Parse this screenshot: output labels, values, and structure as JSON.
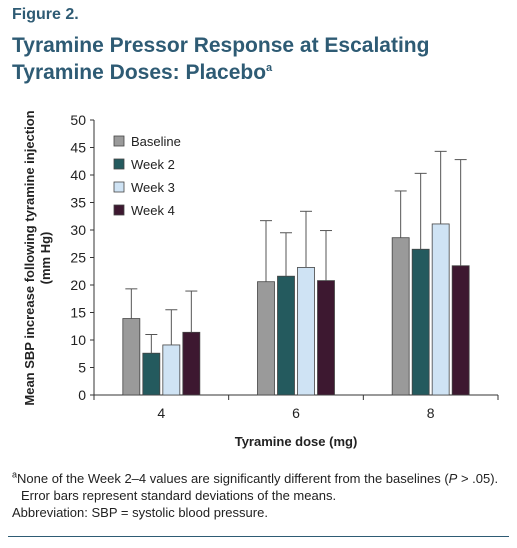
{
  "figure": {
    "label": "Figure 2.",
    "title_line1": "Tyramine Pressor Response at Escalating",
    "title_line2": "Tyramine Doses: Placebo",
    "title_sup": "a"
  },
  "chart_data": {
    "type": "bar",
    "categories": [
      "4",
      "6",
      "8"
    ],
    "series": [
      {
        "name": "Baseline",
        "color": "#9a9a9a",
        "values": [
          13.9,
          20.6,
          28.6
        ],
        "errors": [
          5.4,
          11.1,
          8.5
        ]
      },
      {
        "name": "Week 2",
        "color": "#245a5e",
        "values": [
          7.6,
          21.6,
          26.5
        ],
        "errors": [
          3.4,
          7.9,
          13.8
        ]
      },
      {
        "name": "Week 3",
        "color": "#cfe3f4",
        "values": [
          9.1,
          23.2,
          31.1
        ],
        "errors": [
          6.4,
          10.2,
          13.2
        ]
      },
      {
        "name": "Week 4",
        "color": "#3d1830",
        "values": [
          11.4,
          20.8,
          23.5
        ],
        "errors": [
          7.5,
          9.1,
          19.3
        ]
      }
    ],
    "yticks": [
      0,
      5,
      10,
      15,
      20,
      25,
      30,
      35,
      40,
      45,
      50
    ],
    "ylim": [
      0,
      50
    ],
    "xlabel": "Tyramine dose (mg)",
    "ylabel_line1": "Mean SBP increase following tyramine injection",
    "ylabel_line2": "(mm Hg)",
    "legend_position": "top-left",
    "error_bars": "standard deviation",
    "grid": false
  },
  "notes": {
    "footnote_mark": "a",
    "footnote_pre": "None of the Week 2–4 values are significantly different from the baselines (",
    "footnote_p": "P",
    "footnote_post": " > .05).",
    "footnote_line2": "Error bars represent standard deviations of the means.",
    "abbreviation": "Abbreviation: SBP = systolic blood pressure."
  }
}
